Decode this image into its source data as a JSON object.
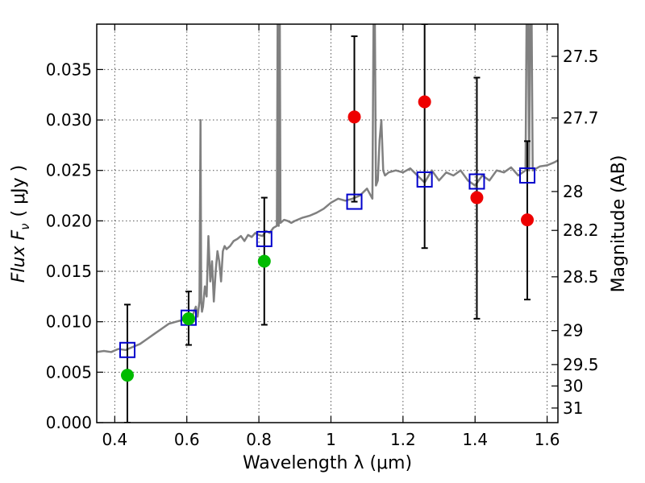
{
  "chart_data": {
    "type": "scatter",
    "xlabel": "Wavelength  λ (μm)",
    "ylabel": "Flux  F",
    "ylabel_sub": "ν",
    "ylabel_unit": "( μJy )",
    "y2label": "Magnitude (AB)",
    "xlim": [
      0.35,
      1.63
    ],
    "ylim": [
      0.0,
      0.0395
    ],
    "grid": true,
    "x_ticks": [
      0.4,
      0.6,
      0.8,
      1.0,
      1.2,
      1.4,
      1.6
    ],
    "x_tick_labels": [
      "0.4",
      "0.6",
      "0.8",
      "1",
      "1.2",
      "1.4",
      "1.6"
    ],
    "y_ticks": [
      0.0,
      0.005,
      0.01,
      0.015,
      0.02,
      0.025,
      0.03,
      0.035
    ],
    "y_tick_labels": [
      "0.000",
      "0.005",
      "0.010",
      "0.015",
      "0.020",
      "0.025",
      "0.030",
      "0.035"
    ],
    "y2_ticks": [
      27.5,
      27.7,
      28,
      28.2,
      28.5,
      29,
      29.5,
      30,
      31
    ],
    "y2_tick_labels": [
      "27.5",
      "27.7",
      "28",
      "28.2",
      "28.5",
      "29",
      "29.5",
      "30",
      "31"
    ],
    "series": [
      {
        "marker": "open-square",
        "color": "#0000cc",
        "points": [
          {
            "x": 0.435,
            "y": 0.0072,
            "yerr_low": 0.0,
            "yerr_high": 0.0117
          },
          {
            "x": 0.605,
            "y": 0.0104,
            "yerr_low": 0.0077,
            "yerr_high": 0.013
          },
          {
            "x": 0.815,
            "y": 0.0182,
            "yerr_low": 0.0097,
            "yerr_high": 0.0223
          },
          {
            "x": 1.065,
            "y": 0.0219,
            "yerr_low": 0.0219,
            "yerr_high": 0.0383
          },
          {
            "x": 1.26,
            "y": 0.0241,
            "yerr_low": 0.0173,
            "yerr_high": 0.0395
          },
          {
            "x": 1.405,
            "y": 0.0239,
            "yerr_low": 0.0103,
            "yerr_high": 0.0342
          },
          {
            "x": 1.545,
            "y": 0.0245,
            "yerr_low": 0.0122,
            "yerr_high": 0.0279
          }
        ]
      },
      {
        "marker": "filled-circle",
        "color": "#00bb00",
        "points": [
          {
            "x": 0.435,
            "y": 0.0047
          },
          {
            "x": 0.605,
            "y": 0.0103
          },
          {
            "x": 0.815,
            "y": 0.016
          }
        ]
      },
      {
        "marker": "filled-circle",
        "color": "#ee0000",
        "points": [
          {
            "x": 1.065,
            "y": 0.0303
          },
          {
            "x": 1.26,
            "y": 0.0318
          },
          {
            "x": 1.405,
            "y": 0.0223
          },
          {
            "x": 1.545,
            "y": 0.0201
          }
        ]
      },
      {
        "type": "line",
        "color": "#808080",
        "x": [
          0.35,
          0.37,
          0.39,
          0.41,
          0.43,
          0.45,
          0.47,
          0.49,
          0.51,
          0.53,
          0.55,
          0.57,
          0.59,
          0.6,
          0.61,
          0.62,
          0.625,
          0.63,
          0.635,
          0.638,
          0.64,
          0.642,
          0.645,
          0.65,
          0.655,
          0.66,
          0.665,
          0.67,
          0.675,
          0.68,
          0.685,
          0.69,
          0.695,
          0.7,
          0.705,
          0.71,
          0.72,
          0.73,
          0.74,
          0.75,
          0.76,
          0.77,
          0.78,
          0.79,
          0.8,
          0.81,
          0.82,
          0.83,
          0.84,
          0.85,
          0.853,
          0.855,
          0.857,
          0.86,
          0.87,
          0.88,
          0.89,
          0.9,
          0.92,
          0.94,
          0.96,
          0.98,
          1.0,
          1.02,
          1.04,
          1.06,
          1.08,
          1.1,
          1.115,
          1.12,
          1.125,
          1.13,
          1.135,
          1.14,
          1.145,
          1.15,
          1.16,
          1.18,
          1.2,
          1.22,
          1.24,
          1.26,
          1.28,
          1.3,
          1.32,
          1.34,
          1.36,
          1.38,
          1.4,
          1.42,
          1.44,
          1.46,
          1.48,
          1.5,
          1.52,
          1.54,
          1.545,
          1.55,
          1.555,
          1.56,
          1.58,
          1.6,
          1.62,
          1.63
        ],
        "y": [
          0.007,
          0.0071,
          0.007,
          0.0073,
          0.0072,
          0.0075,
          0.0078,
          0.0083,
          0.0088,
          0.0093,
          0.0098,
          0.01,
          0.0102,
          0.0104,
          0.01,
          0.011,
          0.0115,
          0.0105,
          0.012,
          0.03,
          0.012,
          0.011,
          0.0115,
          0.0135,
          0.0125,
          0.0185,
          0.014,
          0.016,
          0.012,
          0.015,
          0.017,
          0.016,
          0.014,
          0.017,
          0.0175,
          0.0172,
          0.0175,
          0.018,
          0.0182,
          0.0185,
          0.018,
          0.0186,
          0.0184,
          0.0188,
          0.0186,
          0.0185,
          0.019,
          0.0188,
          0.0193,
          0.0195,
          0.05,
          0.0195,
          0.05,
          0.0198,
          0.0201,
          0.02,
          0.0198,
          0.02,
          0.0203,
          0.0205,
          0.0208,
          0.0212,
          0.0218,
          0.0222,
          0.022,
          0.0222,
          0.0225,
          0.0232,
          0.0222,
          0.05,
          0.0235,
          0.024,
          0.028,
          0.03,
          0.025,
          0.0245,
          0.0248,
          0.025,
          0.0248,
          0.0252,
          0.0245,
          0.0238,
          0.025,
          0.024,
          0.0248,
          0.0245,
          0.025,
          0.024,
          0.0235,
          0.0245,
          0.024,
          0.025,
          0.0248,
          0.0253,
          0.0245,
          0.025,
          0.05,
          0.025,
          0.05,
          0.025,
          0.0254,
          0.0255,
          0.0258,
          0.026
        ]
      }
    ]
  }
}
